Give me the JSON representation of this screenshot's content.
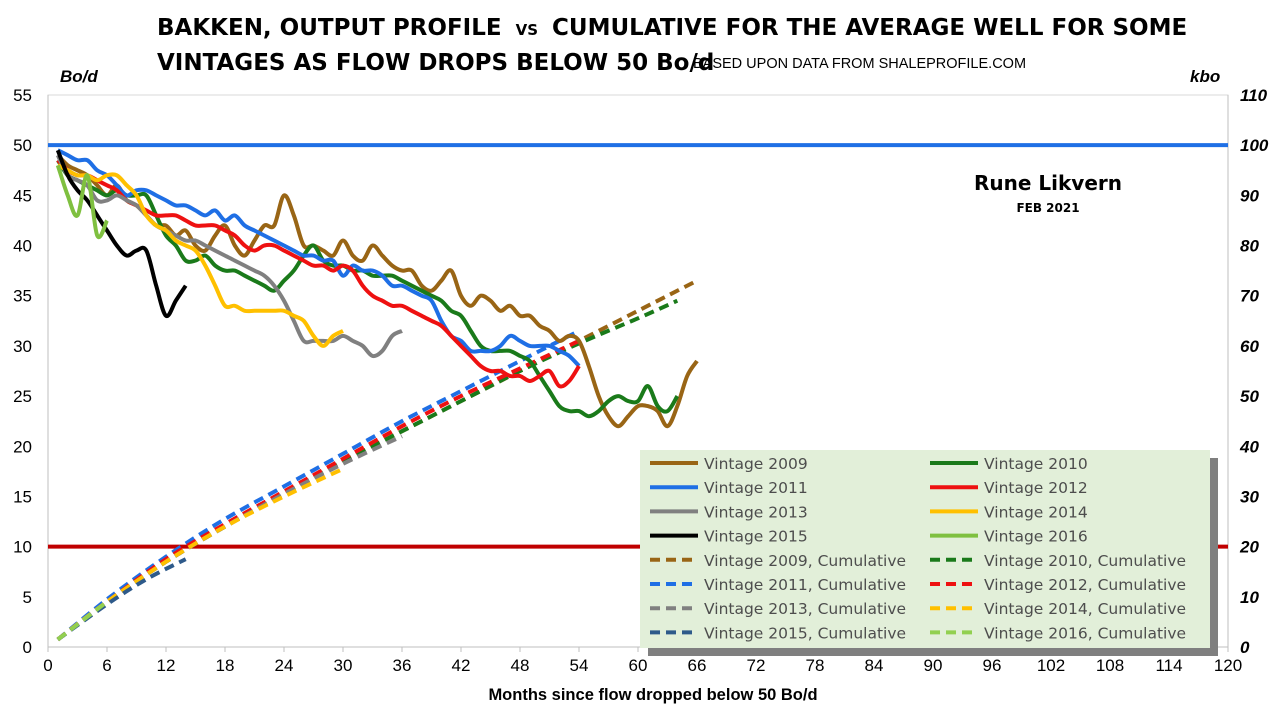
{
  "chart_data": {
    "type": "line",
    "title_line1": "BAKKEN, OUTPUT PROFILE",
    "title_vs": "VS",
    "title_line1b": "CUMULATIVE FOR THE AVERAGE WELL FOR SOME",
    "title_line2": "VINTAGES AS FLOW DROPS BELOW 50 Bo/d",
    "subtitle": "BASED UPON DATA FROM SHALEPROFILE.COM",
    "author": "Rune Likvern",
    "date": "FEB 2021",
    "xlabel": "Months since flow dropped below 50 Bo/d",
    "ylabel_left": "Bo/d",
    "ylabel_right": "kbo",
    "xlim": [
      0,
      120
    ],
    "ylim_left": [
      0,
      55
    ],
    "ylim_right": [
      0,
      110
    ],
    "xticks": [
      "0",
      "6",
      "12",
      "18",
      "24",
      "30",
      "36",
      "42",
      "48",
      "54",
      "60",
      "66",
      "72",
      "78",
      "84",
      "90",
      "96",
      "102",
      "108",
      "114",
      "120"
    ],
    "yticks_left": [
      "0",
      "5",
      "10",
      "15",
      "20",
      "25",
      "30",
      "35",
      "40",
      "45",
      "50",
      "55"
    ],
    "yticks_right": [
      "0",
      "10",
      "20",
      "30",
      "40",
      "50",
      "60",
      "70",
      "80",
      "90",
      "100",
      "110"
    ],
    "grid": false,
    "legend_position": "bottom-right",
    "reference_lines": [
      {
        "name": "50 Bo/d threshold",
        "axis": "left",
        "value": 50,
        "color": "#1f6fe5"
      },
      {
        "name": "10 Bo/d level",
        "axis": "left",
        "value": 10,
        "color": "#c00000"
      }
    ],
    "series": [
      {
        "name": "Vintage 2009",
        "axis": "left",
        "style": "solid",
        "color": "#996515",
        "x": [
          1,
          2,
          3,
          4,
          5,
          6,
          7,
          8,
          9,
          10,
          11,
          12,
          13,
          14,
          15,
          16,
          17,
          18,
          19,
          20,
          21,
          22,
          23,
          24,
          25,
          26,
          27,
          28,
          29,
          30,
          31,
          32,
          33,
          34,
          35,
          36,
          37,
          38,
          39,
          40,
          41,
          42,
          43,
          44,
          45,
          46,
          47,
          48,
          49,
          50,
          51,
          52,
          53,
          54,
          55,
          56,
          57,
          58,
          59,
          60,
          61,
          62,
          63,
          64,
          65,
          66
        ],
        "values": [
          49,
          48,
          47.5,
          47,
          46,
          45,
          46,
          44.5,
          44,
          43,
          42,
          42,
          41,
          41.5,
          40,
          39.5,
          41,
          42,
          40,
          39,
          40.5,
          42,
          42,
          45,
          43,
          40,
          40,
          39.5,
          39,
          40.5,
          39,
          38.5,
          40,
          39,
          38,
          37.5,
          37.5,
          36,
          35.5,
          36.5,
          37.5,
          35,
          34,
          35,
          34.5,
          33.5,
          34,
          33,
          33,
          32,
          31.5,
          30.5,
          31,
          30.5,
          28,
          25,
          23,
          22,
          23,
          24,
          24,
          23.5,
          22,
          24,
          27,
          28.5
        ]
      },
      {
        "name": "Vintage 2010",
        "axis": "left",
        "style": "solid",
        "color": "#1a7a1a",
        "x": [
          1,
          2,
          3,
          4,
          5,
          6,
          7,
          8,
          9,
          10,
          11,
          12,
          13,
          14,
          15,
          16,
          17,
          18,
          19,
          20,
          21,
          22,
          23,
          24,
          25,
          26,
          27,
          28,
          29,
          30,
          31,
          32,
          33,
          34,
          35,
          36,
          37,
          38,
          39,
          40,
          41,
          42,
          43,
          44,
          45,
          46,
          47,
          48,
          49,
          50,
          51,
          52,
          53,
          54,
          55,
          56,
          57,
          58,
          59,
          60,
          61,
          62,
          63,
          64
        ],
        "values": [
          48.5,
          47,
          46.5,
          46,
          45.5,
          45,
          45.5,
          45,
          45,
          45,
          43,
          41,
          40,
          38.5,
          38.5,
          39,
          38,
          37.5,
          37.5,
          37,
          36.5,
          36,
          35.5,
          36.5,
          37.5,
          39,
          40,
          38.5,
          38,
          38,
          37.5,
          37.5,
          37,
          37,
          37,
          36.5,
          36,
          35.5,
          35,
          34.5,
          33.5,
          33,
          31.5,
          30,
          29.5,
          29.5,
          29.5,
          29,
          28.5,
          27,
          25.5,
          24,
          23.5,
          23.5,
          23,
          23.5,
          24.5,
          25,
          24.5,
          24.5,
          26,
          24,
          23.5,
          25
        ]
      },
      {
        "name": "Vintage 2011",
        "axis": "left",
        "style": "solid",
        "color": "#1f6fe5",
        "x": [
          1,
          2,
          3,
          4,
          5,
          6,
          7,
          8,
          9,
          10,
          11,
          12,
          13,
          14,
          15,
          16,
          17,
          18,
          19,
          20,
          21,
          22,
          23,
          24,
          25,
          26,
          27,
          28,
          29,
          30,
          31,
          32,
          33,
          34,
          35,
          36,
          37,
          38,
          39,
          40,
          41,
          42,
          43,
          44,
          45,
          46,
          47,
          48,
          49,
          50,
          51,
          52,
          53,
          54
        ],
        "values": [
          49.5,
          49,
          48.5,
          48.5,
          47.5,
          47,
          46,
          45,
          45.5,
          45.5,
          45,
          44.5,
          44,
          44,
          43.5,
          43,
          43.5,
          42.5,
          43,
          42,
          41.5,
          41,
          40.5,
          40,
          39.5,
          39,
          39,
          38.5,
          38.5,
          37,
          38,
          37.5,
          37.5,
          37,
          36,
          36,
          35.5,
          35,
          34.5,
          32.5,
          31,
          30.5,
          29.5,
          29.5,
          29.5,
          30,
          31,
          30.5,
          30,
          30,
          30,
          29.5,
          29,
          28
        ]
      },
      {
        "name": "Vintage 2012",
        "axis": "left",
        "style": "solid",
        "color": "#ee1111",
        "x": [
          1,
          2,
          3,
          4,
          5,
          6,
          7,
          8,
          9,
          10,
          11,
          12,
          13,
          14,
          15,
          16,
          17,
          18,
          19,
          20,
          21,
          22,
          23,
          24,
          25,
          26,
          27,
          28,
          29,
          30,
          31,
          32,
          33,
          34,
          35,
          36,
          37,
          38,
          39,
          40,
          41,
          42,
          43,
          44,
          45,
          46,
          47,
          48,
          49,
          50,
          51,
          52,
          53,
          54
        ],
        "values": [
          48.5,
          47.5,
          47,
          47,
          46.5,
          46,
          45.5,
          44.5,
          44,
          43.5,
          43,
          43,
          43,
          42.5,
          42,
          42,
          42,
          41.5,
          41,
          40,
          39.5,
          40,
          40,
          39.5,
          39,
          38.5,
          38,
          38,
          37.5,
          38,
          37.5,
          36,
          35,
          34.5,
          34,
          34,
          33.5,
          33,
          32.5,
          32,
          31,
          30,
          29,
          28,
          27.5,
          27.5,
          27,
          27,
          26.5,
          27,
          27.5,
          26,
          26.5,
          28
        ]
      },
      {
        "name": "Vintage 2013",
        "axis": "left",
        "style": "solid",
        "color": "#808080",
        "x": [
          1,
          2,
          3,
          4,
          5,
          6,
          7,
          8,
          9,
          10,
          11,
          12,
          13,
          14,
          15,
          16,
          17,
          18,
          19,
          20,
          21,
          22,
          23,
          24,
          25,
          26,
          27,
          28,
          29,
          30,
          31,
          32,
          33,
          34,
          35,
          36
        ],
        "values": [
          49,
          47,
          46.5,
          46,
          44.5,
          44.5,
          45,
          44.5,
          44,
          43,
          42,
          41.5,
          41,
          40.5,
          40.5,
          40,
          39.5,
          39,
          38.5,
          38,
          37.5,
          37,
          36,
          34.5,
          32.5,
          30.5,
          30.5,
          30.5,
          30.5,
          31,
          30.5,
          30,
          29,
          29.5,
          31,
          31.5
        ]
      },
      {
        "name": "Vintage 2014",
        "axis": "left",
        "style": "solid",
        "color": "#ffc000",
        "x": [
          1,
          2,
          3,
          4,
          5,
          6,
          7,
          8,
          9,
          10,
          11,
          12,
          13,
          14,
          15,
          16,
          17,
          18,
          19,
          20,
          21,
          22,
          23,
          24,
          25,
          26,
          27,
          28,
          29,
          30
        ],
        "values": [
          48,
          47.5,
          47,
          47,
          46.5,
          47,
          47,
          46,
          45,
          43,
          42,
          41.5,
          40.5,
          40,
          39.5,
          38,
          36,
          34,
          34,
          33.5,
          33.5,
          33.5,
          33.5,
          33.5,
          33,
          32.5,
          31,
          30,
          31,
          31.5
        ]
      },
      {
        "name": "Vintage 2015",
        "axis": "left",
        "style": "solid",
        "color": "#000000",
        "x": [
          1,
          2,
          3,
          4,
          5,
          6,
          7,
          8,
          9,
          10,
          11,
          12,
          13,
          14
        ],
        "values": [
          49.5,
          47,
          45.5,
          44.5,
          43,
          41.5,
          40,
          39,
          39.5,
          39.5,
          36,
          33,
          34.5,
          36
        ]
      },
      {
        "name": "Vintage 2016",
        "axis": "left",
        "style": "solid",
        "color": "#7fc040",
        "x": [
          1,
          2,
          3,
          4,
          5,
          6
        ],
        "values": [
          48,
          45,
          43,
          47,
          41,
          42.5
        ]
      },
      {
        "name": "Vintage 2009, Cumulative",
        "axis": "right",
        "style": "dashed",
        "color": "#996515",
        "x": [
          1,
          6,
          12,
          18,
          24,
          30,
          36,
          42,
          48,
          54,
          60,
          66
        ],
        "values": [
          1.5,
          9,
          17,
          24,
          30.5,
          37,
          43,
          49,
          55,
          61,
          67,
          73
        ]
      },
      {
        "name": "Vintage 2010, Cumulative",
        "axis": "right",
        "style": "dashed",
        "color": "#1a7a1a",
        "x": [
          1,
          6,
          12,
          18,
          24,
          30,
          36,
          42,
          48,
          54,
          60,
          64
        ],
        "values": [
          1.5,
          9,
          17,
          24,
          30.5,
          37,
          43,
          49,
          55,
          60.5,
          65.5,
          69
        ]
      },
      {
        "name": "Vintage 2011, Cumulative",
        "axis": "right",
        "style": "dashed",
        "color": "#1f6fe5",
        "x": [
          1,
          6,
          12,
          18,
          24,
          30,
          36,
          42,
          48,
          54
        ],
        "values": [
          1.5,
          9.5,
          18,
          25.5,
          32,
          38.5,
          45,
          51,
          57,
          63
        ]
      },
      {
        "name": "Vintage 2012, Cumulative",
        "axis": "right",
        "style": "dashed",
        "color": "#ee1111",
        "x": [
          1,
          6,
          12,
          18,
          24,
          30,
          36,
          42,
          48,
          54
        ],
        "values": [
          1.5,
          9,
          17.5,
          24.5,
          31,
          37.5,
          44,
          50,
          55.5,
          61
        ]
      },
      {
        "name": "Vintage 2013, Cumulative",
        "axis": "right",
        "style": "dashed",
        "color": "#808080",
        "x": [
          1,
          6,
          12,
          18,
          24,
          30,
          36
        ],
        "values": [
          1.5,
          9,
          17,
          24,
          30.5,
          36.5,
          42
        ]
      },
      {
        "name": "Vintage 2014, Cumulative",
        "axis": "right",
        "style": "dashed",
        "color": "#ffc000",
        "x": [
          1,
          6,
          12,
          18,
          24,
          30
        ],
        "values": [
          1.5,
          9,
          17,
          24,
          30,
          35.5
        ]
      },
      {
        "name": "Vintage 2015, Cumulative",
        "axis": "right",
        "style": "dashed",
        "color": "#2e5a8a",
        "x": [
          1,
          6,
          10,
          14
        ],
        "values": [
          1.5,
          8.5,
          13.5,
          17.5
        ]
      },
      {
        "name": "Vintage 2016, Cumulative",
        "axis": "right",
        "style": "dashed",
        "color": "#92d050",
        "x": [
          1,
          3,
          6
        ],
        "values": [
          1.5,
          4.5,
          9
        ]
      }
    ]
  }
}
